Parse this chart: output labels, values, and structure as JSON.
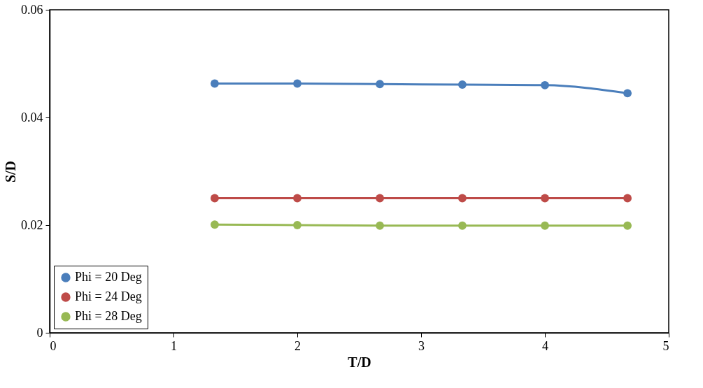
{
  "chart_data": {
    "type": "line",
    "xlabel": "T/D",
    "ylabel": "S/D",
    "x": [
      1.333,
      2,
      2.667,
      3.333,
      4,
      4.667
    ],
    "series": [
      {
        "name": "Phi = 20 Deg",
        "color": "#4a7ebb",
        "values": [
          0.0463,
          0.0463,
          0.0462,
          0.0461,
          0.046,
          0.0445
        ]
      },
      {
        "name": "Phi = 24 Deg",
        "color": "#be4b48",
        "values": [
          0.025,
          0.025,
          0.025,
          0.025,
          0.025,
          0.025
        ]
      },
      {
        "name": "Phi = 28 Deg",
        "color": "#98b954",
        "values": [
          0.0201,
          0.02,
          0.0199,
          0.0199,
          0.0199,
          0.0199
        ]
      }
    ],
    "xlim": [
      0,
      5
    ],
    "xticks": [
      0,
      1,
      2,
      3,
      4,
      5
    ],
    "ylim": [
      0,
      0.06
    ],
    "yticks": [
      0,
      0.02,
      0.04,
      0.06
    ],
    "grid": false,
    "legend": "bottom left",
    "marker": "circle",
    "line_style": "solid"
  }
}
